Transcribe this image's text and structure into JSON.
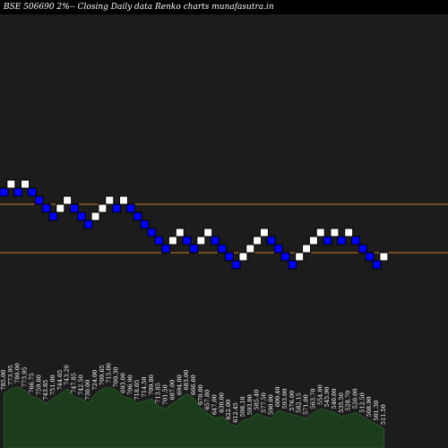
{
  "chart_data": {
    "type": "renko",
    "title": "BSE 506690  2%--  Closing Daily data  Renko  charts munafasutra.in",
    "colors": {
      "background": "#000000",
      "plot_background": "#1c1c1c",
      "up_brick": "#ffffff",
      "down_brick": "#0000ff",
      "brick_border": "#000000",
      "reference_line": "#cc7722",
      "volume_fill": "#1b3d1b",
      "volume_line": "#2e5e2e"
    },
    "reference_lines": [
      {
        "level": 13
      },
      {
        "level": 7
      }
    ],
    "bricks": [
      {
        "level": 14,
        "dir": "down"
      },
      {
        "level": 15,
        "dir": "up"
      },
      {
        "level": 14,
        "dir": "down"
      },
      {
        "level": 15,
        "dir": "up"
      },
      {
        "level": 14,
        "dir": "down"
      },
      {
        "level": 13,
        "dir": "down"
      },
      {
        "level": 12,
        "dir": "down"
      },
      {
        "level": 11,
        "dir": "down"
      },
      {
        "level": 12,
        "dir": "up"
      },
      {
        "level": 13,
        "dir": "up"
      },
      {
        "level": 12,
        "dir": "down"
      },
      {
        "level": 11,
        "dir": "down"
      },
      {
        "level": 10,
        "dir": "down"
      },
      {
        "level": 11,
        "dir": "up"
      },
      {
        "level": 12,
        "dir": "up"
      },
      {
        "level": 13,
        "dir": "up"
      },
      {
        "level": 12,
        "dir": "down"
      },
      {
        "level": 13,
        "dir": "up"
      },
      {
        "level": 12,
        "dir": "down"
      },
      {
        "level": 11,
        "dir": "down"
      },
      {
        "level": 10,
        "dir": "down"
      },
      {
        "level": 9,
        "dir": "down"
      },
      {
        "level": 8,
        "dir": "down"
      },
      {
        "level": 7,
        "dir": "down"
      },
      {
        "level": 8,
        "dir": "up"
      },
      {
        "level": 9,
        "dir": "up"
      },
      {
        "level": 8,
        "dir": "down"
      },
      {
        "level": 7,
        "dir": "down"
      },
      {
        "level": 8,
        "dir": "up"
      },
      {
        "level": 9,
        "dir": "up"
      },
      {
        "level": 8,
        "dir": "down"
      },
      {
        "level": 7,
        "dir": "down"
      },
      {
        "level": 6,
        "dir": "down"
      },
      {
        "level": 5,
        "dir": "down"
      },
      {
        "level": 6,
        "dir": "up"
      },
      {
        "level": 7,
        "dir": "up"
      },
      {
        "level": 8,
        "dir": "up"
      },
      {
        "level": 9,
        "dir": "up"
      },
      {
        "level": 8,
        "dir": "down"
      },
      {
        "level": 7,
        "dir": "down"
      },
      {
        "level": 6,
        "dir": "down"
      },
      {
        "level": 5,
        "dir": "down"
      },
      {
        "level": 6,
        "dir": "up"
      },
      {
        "level": 7,
        "dir": "up"
      },
      {
        "level": 8,
        "dir": "up"
      },
      {
        "level": 9,
        "dir": "up"
      },
      {
        "level": 8,
        "dir": "down"
      },
      {
        "level": 9,
        "dir": "up"
      },
      {
        "level": 8,
        "dir": "down"
      },
      {
        "level": 9,
        "dir": "up"
      },
      {
        "level": 8,
        "dir": "down"
      },
      {
        "level": 7,
        "dir": "down"
      },
      {
        "level": 6,
        "dir": "down"
      },
      {
        "level": 5,
        "dir": "down"
      },
      {
        "level": 6,
        "dir": "up"
      }
    ],
    "price_labels": [
      "785.00",
      "773.95",
      "780.00",
      "773.95",
      "766.75",
      "759.00",
      "743.85",
      "751.00",
      "744.65",
      "743.20",
      "747.85",
      "742.50",
      "730.00",
      "724.00",
      "709.65",
      "715.00",
      "700.30",
      "693.00",
      "706.90",
      "718.05",
      "714.50",
      "709.80",
      "713.85",
      "701.50",
      "687.00",
      "694.00",
      "683.00",
      "666.60",
      "670.00",
      "657.80",
      "647.00",
      "630.00",
      "622.00",
      "612.45",
      "598.10",
      "593.00",
      "585.40",
      "577.50",
      "590.00",
      "600.40",
      "593.00",
      "576.00",
      "582.15",
      "571.00",
      "563.70",
      "554.00",
      "545.90",
      "540.00",
      "535.50",
      "528.70",
      "520.00",
      "512.50",
      "508.90",
      "501.30",
      "511.50"
    ],
    "volume": [
      0.55,
      0.6,
      0.62,
      0.58,
      0.52,
      0.5,
      0.45,
      0.5,
      0.55,
      0.6,
      0.52,
      0.5,
      0.45,
      0.55,
      0.6,
      0.62,
      0.58,
      0.52,
      0.5,
      0.45,
      0.48,
      0.5,
      0.42,
      0.4,
      0.45,
      0.5,
      0.55,
      0.5,
      0.4,
      0.35,
      0.3,
      0.32,
      0.25,
      0.22,
      0.28,
      0.3,
      0.35,
      0.32,
      0.3,
      0.38,
      0.36,
      0.34,
      0.32,
      0.3,
      0.36,
      0.4,
      0.38,
      0.36,
      0.32,
      0.34,
      0.36,
      0.32,
      0.28,
      0.24,
      0.2
    ]
  }
}
